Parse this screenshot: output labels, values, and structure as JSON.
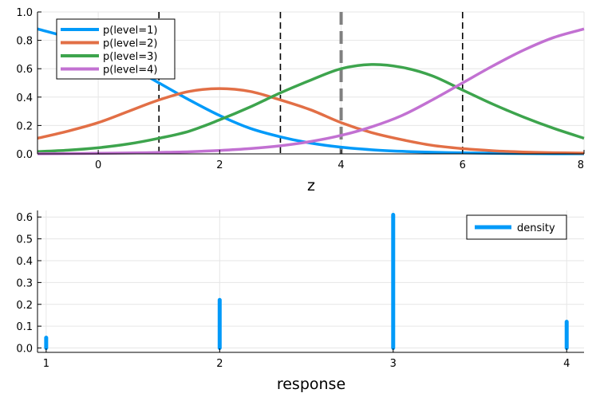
{
  "chart_data": [
    {
      "type": "line",
      "title": "",
      "xlabel": "z",
      "ylabel": "",
      "xlim": [
        -1,
        8
      ],
      "ylim": [
        0,
        1
      ],
      "xticks": [
        0,
        2,
        4,
        6,
        8
      ],
      "xtick_labels": [
        "0",
        "2",
        "4",
        "6",
        "8"
      ],
      "yticks": [
        0,
        0.2,
        0.4,
        0.6,
        0.8,
        1.0
      ],
      "ytick_labels": [
        "0.0",
        "0.2",
        "0.4",
        "0.6",
        "0.8",
        "1.0"
      ],
      "grid": true,
      "legend_position": "top-left",
      "thresholds": [
        1,
        3,
        6
      ],
      "marker_line": 4,
      "x": [
        -1,
        -0.5,
        0,
        0.5,
        1,
        1.5,
        2,
        2.5,
        3,
        3.5,
        4,
        4.5,
        5,
        5.5,
        6,
        6.5,
        7,
        7.5,
        8
      ],
      "series": [
        {
          "name": "p(level=1)",
          "color": "#009af9",
          "values": [
            0.88,
            0.82,
            0.73,
            0.62,
            0.5,
            0.38,
            0.27,
            0.18,
            0.12,
            0.076,
            0.047,
            0.029,
            0.018,
            0.011,
            0.007,
            0.004,
            0.002,
            0.001,
            0.001
          ]
        },
        {
          "name": "p(level=2)",
          "color": "#e26f46",
          "values": [
            0.11,
            0.16,
            0.22,
            0.3,
            0.38,
            0.44,
            0.46,
            0.44,
            0.38,
            0.31,
            0.22,
            0.15,
            0.1,
            0.06,
            0.037,
            0.022,
            0.013,
            0.008,
            0.005
          ]
        },
        {
          "name": "p(level=3)",
          "color": "#3da44d",
          "values": [
            0.016,
            0.026,
            0.043,
            0.07,
            0.11,
            0.16,
            0.24,
            0.33,
            0.43,
            0.52,
            0.6,
            0.63,
            0.61,
            0.55,
            0.45,
            0.35,
            0.26,
            0.18,
            0.11
          ]
        },
        {
          "name": "p(level=4)",
          "color": "#c271d2",
          "values": [
            0.001,
            0.002,
            0.004,
            0.006,
            0.01,
            0.015,
            0.024,
            0.037,
            0.057,
            0.087,
            0.13,
            0.19,
            0.27,
            0.38,
            0.5,
            0.62,
            0.73,
            0.82,
            0.88
          ]
        }
      ]
    },
    {
      "type": "bar",
      "title": "",
      "xlabel": "response",
      "ylabel": "",
      "categories": [
        "1",
        "2",
        "3",
        "4"
      ],
      "x": [
        1,
        2,
        3,
        4
      ],
      "xlim": [
        0.95,
        4.1
      ],
      "ylim": [
        -0.02,
        0.63
      ],
      "yticks": [
        0,
        0.1,
        0.2,
        0.3,
        0.4,
        0.5,
        0.6
      ],
      "ytick_labels": [
        "0.0",
        "0.1",
        "0.2",
        "0.3",
        "0.4",
        "0.5",
        "0.6"
      ],
      "grid": true,
      "legend_position": "top-right",
      "series": [
        {
          "name": "density",
          "color": "#009af9",
          "values": [
            0.047,
            0.22,
            0.61,
            0.12
          ]
        }
      ]
    }
  ]
}
